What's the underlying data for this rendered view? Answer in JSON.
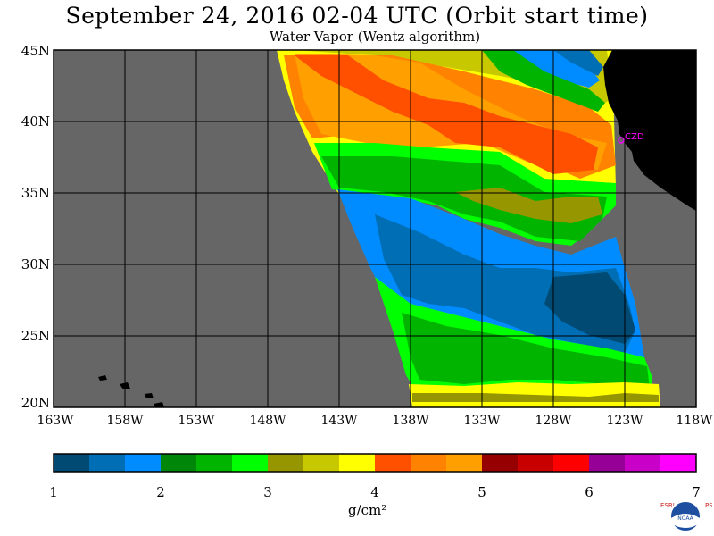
{
  "title": "September 24, 2016  02-04 UTC  (Orbit start time)",
  "subtitle": "Water Vapor (Wentz algorithm)",
  "map": {
    "lat_labels": [
      "45N",
      "40N",
      "35N",
      "30N",
      "25N",
      "20N"
    ],
    "lon_labels": [
      "163W",
      "158W",
      "153W",
      "148W",
      "143W",
      "138W",
      "133W",
      "128W",
      "123W",
      "118W"
    ],
    "station_label": "CZD",
    "colors": {
      "land": "#000000",
      "ocean_no_data": "#666666",
      "station": "#ff00ff"
    }
  },
  "colorbar": {
    "ticks": [
      "1",
      "2",
      "3",
      "4",
      "5",
      "6",
      "7"
    ],
    "units": "g/cm²",
    "colors": [
      "#004a73",
      "#006eb4",
      "#008cff",
      "#00870a",
      "#00b400",
      "#00ff00",
      "#969600",
      "#c8c800",
      "#ffff00",
      "#ff5000",
      "#ff8200",
      "#ffa000",
      "#960000",
      "#c80000",
      "#ff0000",
      "#960096",
      "#c800c8",
      "#ff00ff"
    ]
  },
  "logo": {
    "left_text": "ESRL",
    "right_text": "PSD",
    "center_text": "NOAA"
  }
}
